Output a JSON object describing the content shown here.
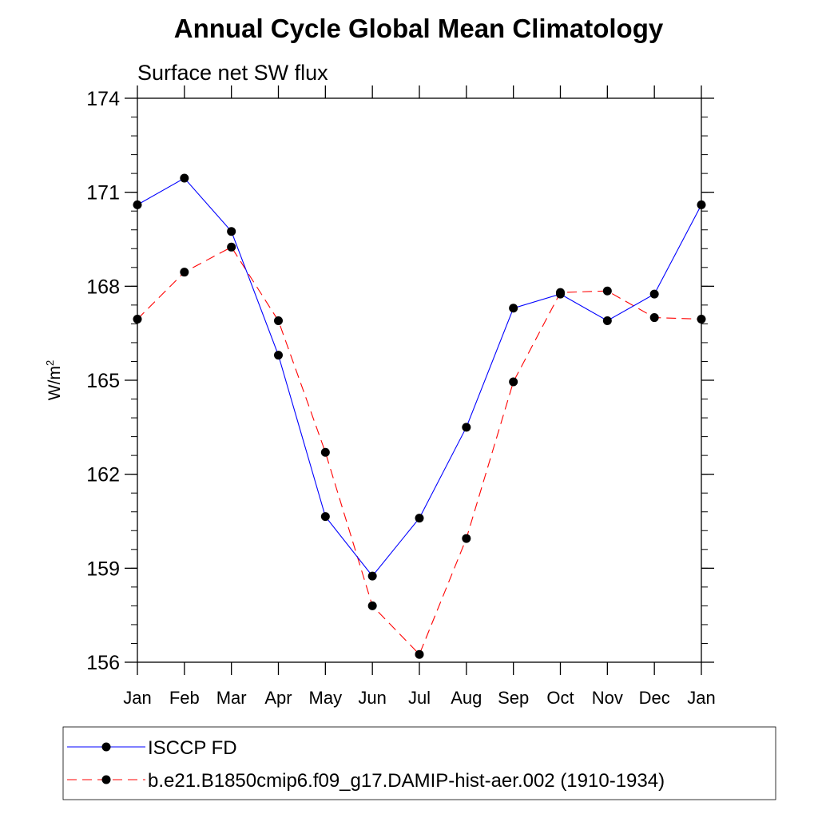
{
  "chart_data": {
    "type": "line",
    "title": "Annual Cycle Global Mean Climatology",
    "subtitle": "Surface net SW flux",
    "ylabel_base": "W/m",
    "ylabel_sup": "2",
    "xlabel": "",
    "categories": [
      "Jan",
      "Feb",
      "Mar",
      "Apr",
      "May",
      "Jun",
      "Jul",
      "Aug",
      "Sep",
      "Oct",
      "Nov",
      "Dec",
      "Jan"
    ],
    "ylim": [
      156,
      174
    ],
    "yticks": [
      156,
      159,
      162,
      165,
      168,
      171,
      174
    ],
    "series": [
      {
        "name": "ISCCP FD",
        "color": "#0000ff",
        "dash": "solid",
        "values": [
          170.6,
          171.45,
          169.75,
          165.8,
          160.65,
          158.75,
          160.6,
          163.5,
          167.3,
          167.75,
          166.9,
          167.75,
          170.6
        ]
      },
      {
        "name": "b.e21.B1850cmip6.f09_g17.DAMIP-hist-aer.002 (1910-1934)",
        "color": "#ff0000",
        "dash": "dashed",
        "values": [
          166.95,
          168.45,
          169.25,
          166.9,
          162.7,
          157.8,
          156.25,
          159.95,
          164.95,
          167.8,
          167.85,
          167.0,
          166.95
        ]
      }
    ]
  }
}
